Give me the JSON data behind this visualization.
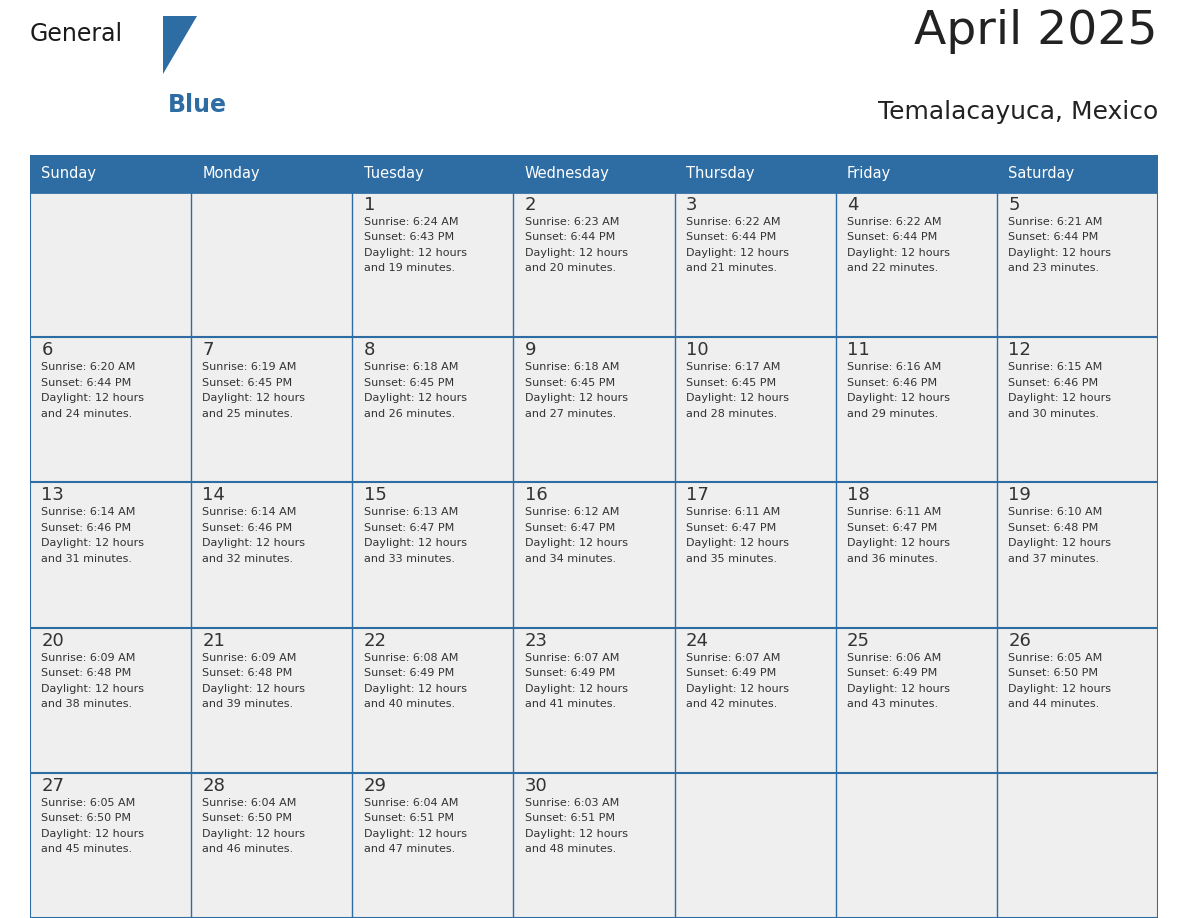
{
  "title": "April 2025",
  "subtitle": "Temalacayuca, Mexico",
  "days_of_week": [
    "Sunday",
    "Monday",
    "Tuesday",
    "Wednesday",
    "Thursday",
    "Friday",
    "Saturday"
  ],
  "header_bg": "#2E6DA4",
  "header_text": "#FFFFFF",
  "cell_bg_light": "#EFEFEF",
  "border_color": "#2E6DA4",
  "text_color": "#333333",
  "title_color": "#222222",
  "general_color": "#1a1a1a",
  "blue_color": "#2E6DA4",
  "weeks": [
    [
      {
        "day": "",
        "sunrise": "",
        "sunset": "",
        "daylight_hours": 0,
        "daylight_min": 0,
        "show": false
      },
      {
        "day": "",
        "sunrise": "",
        "sunset": "",
        "daylight_hours": 0,
        "daylight_min": 0,
        "show": false
      },
      {
        "day": "1",
        "sunrise": "6:24 AM",
        "sunset": "6:43 PM",
        "daylight_hours": 12,
        "daylight_min": 19,
        "show": true
      },
      {
        "day": "2",
        "sunrise": "6:23 AM",
        "sunset": "6:44 PM",
        "daylight_hours": 12,
        "daylight_min": 20,
        "show": true
      },
      {
        "day": "3",
        "sunrise": "6:22 AM",
        "sunset": "6:44 PM",
        "daylight_hours": 12,
        "daylight_min": 21,
        "show": true
      },
      {
        "day": "4",
        "sunrise": "6:22 AM",
        "sunset": "6:44 PM",
        "daylight_hours": 12,
        "daylight_min": 22,
        "show": true
      },
      {
        "day": "5",
        "sunrise": "6:21 AM",
        "sunset": "6:44 PM",
        "daylight_hours": 12,
        "daylight_min": 23,
        "show": true
      }
    ],
    [
      {
        "day": "6",
        "sunrise": "6:20 AM",
        "sunset": "6:44 PM",
        "daylight_hours": 12,
        "daylight_min": 24,
        "show": true
      },
      {
        "day": "7",
        "sunrise": "6:19 AM",
        "sunset": "6:45 PM",
        "daylight_hours": 12,
        "daylight_min": 25,
        "show": true
      },
      {
        "day": "8",
        "sunrise": "6:18 AM",
        "sunset": "6:45 PM",
        "daylight_hours": 12,
        "daylight_min": 26,
        "show": true
      },
      {
        "day": "9",
        "sunrise": "6:18 AM",
        "sunset": "6:45 PM",
        "daylight_hours": 12,
        "daylight_min": 27,
        "show": true
      },
      {
        "day": "10",
        "sunrise": "6:17 AM",
        "sunset": "6:45 PM",
        "daylight_hours": 12,
        "daylight_min": 28,
        "show": true
      },
      {
        "day": "11",
        "sunrise": "6:16 AM",
        "sunset": "6:46 PM",
        "daylight_hours": 12,
        "daylight_min": 29,
        "show": true
      },
      {
        "day": "12",
        "sunrise": "6:15 AM",
        "sunset": "6:46 PM",
        "daylight_hours": 12,
        "daylight_min": 30,
        "show": true
      }
    ],
    [
      {
        "day": "13",
        "sunrise": "6:14 AM",
        "sunset": "6:46 PM",
        "daylight_hours": 12,
        "daylight_min": 31,
        "show": true
      },
      {
        "day": "14",
        "sunrise": "6:14 AM",
        "sunset": "6:46 PM",
        "daylight_hours": 12,
        "daylight_min": 32,
        "show": true
      },
      {
        "day": "15",
        "sunrise": "6:13 AM",
        "sunset": "6:47 PM",
        "daylight_hours": 12,
        "daylight_min": 33,
        "show": true
      },
      {
        "day": "16",
        "sunrise": "6:12 AM",
        "sunset": "6:47 PM",
        "daylight_hours": 12,
        "daylight_min": 34,
        "show": true
      },
      {
        "day": "17",
        "sunrise": "6:11 AM",
        "sunset": "6:47 PM",
        "daylight_hours": 12,
        "daylight_min": 35,
        "show": true
      },
      {
        "day": "18",
        "sunrise": "6:11 AM",
        "sunset": "6:47 PM",
        "daylight_hours": 12,
        "daylight_min": 36,
        "show": true
      },
      {
        "day": "19",
        "sunrise": "6:10 AM",
        "sunset": "6:48 PM",
        "daylight_hours": 12,
        "daylight_min": 37,
        "show": true
      }
    ],
    [
      {
        "day": "20",
        "sunrise": "6:09 AM",
        "sunset": "6:48 PM",
        "daylight_hours": 12,
        "daylight_min": 38,
        "show": true
      },
      {
        "day": "21",
        "sunrise": "6:09 AM",
        "sunset": "6:48 PM",
        "daylight_hours": 12,
        "daylight_min": 39,
        "show": true
      },
      {
        "day": "22",
        "sunrise": "6:08 AM",
        "sunset": "6:49 PM",
        "daylight_hours": 12,
        "daylight_min": 40,
        "show": true
      },
      {
        "day": "23",
        "sunrise": "6:07 AM",
        "sunset": "6:49 PM",
        "daylight_hours": 12,
        "daylight_min": 41,
        "show": true
      },
      {
        "day": "24",
        "sunrise": "6:07 AM",
        "sunset": "6:49 PM",
        "daylight_hours": 12,
        "daylight_min": 42,
        "show": true
      },
      {
        "day": "25",
        "sunrise": "6:06 AM",
        "sunset": "6:49 PM",
        "daylight_hours": 12,
        "daylight_min": 43,
        "show": true
      },
      {
        "day": "26",
        "sunrise": "6:05 AM",
        "sunset": "6:50 PM",
        "daylight_hours": 12,
        "daylight_min": 44,
        "show": true
      }
    ],
    [
      {
        "day": "27",
        "sunrise": "6:05 AM",
        "sunset": "6:50 PM",
        "daylight_hours": 12,
        "daylight_min": 45,
        "show": true
      },
      {
        "day": "28",
        "sunrise": "6:04 AM",
        "sunset": "6:50 PM",
        "daylight_hours": 12,
        "daylight_min": 46,
        "show": true
      },
      {
        "day": "29",
        "sunrise": "6:04 AM",
        "sunset": "6:51 PM",
        "daylight_hours": 12,
        "daylight_min": 47,
        "show": true
      },
      {
        "day": "30",
        "sunrise": "6:03 AM",
        "sunset": "6:51 PM",
        "daylight_hours": 12,
        "daylight_min": 48,
        "show": true
      },
      {
        "day": "",
        "sunrise": "",
        "sunset": "",
        "daylight_hours": 0,
        "daylight_min": 0,
        "show": false
      },
      {
        "day": "",
        "sunrise": "",
        "sunset": "",
        "daylight_hours": 0,
        "daylight_min": 0,
        "show": false
      },
      {
        "day": "",
        "sunrise": "",
        "sunset": "",
        "daylight_hours": 0,
        "daylight_min": 0,
        "show": false
      }
    ]
  ]
}
